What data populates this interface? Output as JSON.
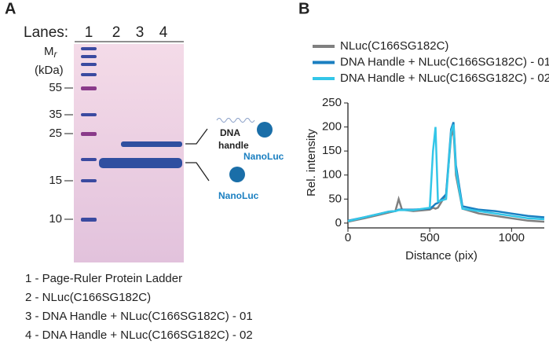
{
  "panel_a": {
    "label": "A",
    "lanes_label": "Lanes:",
    "lanes": [
      "1",
      "2",
      "3",
      "4"
    ],
    "mr": "M",
    "mr_sub": "r",
    "unit": "(kDa)",
    "markers": [
      "55",
      "35",
      "25",
      "15",
      "10"
    ],
    "dna": "DNA",
    "handle": "handle",
    "nanoluc_top": "NanoLuc",
    "nanoluc_bottom": "NanoLuc",
    "key": [
      "1 - Page-Ruler Protein Ladder",
      "2 - NLuc(C166SG182C)",
      "3 - DNA Handle + NLuc(C166SG182C) - 01",
      "4 - DNA Handle + NLuc(C166SG182C) - 02"
    ]
  },
  "chart_data": {
    "type": "line",
    "panel_label": "B",
    "xlabel": "Distance (pix)",
    "ylabel": "Rel. intensity",
    "x": [
      0,
      100,
      200,
      250,
      290,
      310,
      330,
      400,
      500,
      520,
      535,
      550,
      600,
      630,
      645,
      660,
      700,
      800,
      900,
      1000,
      1100,
      1200
    ],
    "series": [
      {
        "name": "NLuc(C166SG182C)",
        "color": "#808080",
        "values": [
          3,
          10,
          18,
          22,
          25,
          50,
          28,
          25,
          28,
          32,
          30,
          32,
          60,
          180,
          195,
          100,
          30,
          20,
          15,
          10,
          5,
          3
        ]
      },
      {
        "name": "DNA Handle + NLuc(C166SG182C) - 01",
        "color": "#1a7fc1",
        "values": [
          5,
          12,
          20,
          24,
          25,
          28,
          28,
          28,
          30,
          35,
          40,
          42,
          60,
          195,
          210,
          120,
          35,
          28,
          25,
          20,
          15,
          12
        ]
      },
      {
        "name": "DNA Handle + NLuc(C166SG182C) - 02",
        "color": "#33c6e8",
        "values": [
          4,
          12,
          20,
          24,
          25,
          27,
          27,
          27,
          32,
          150,
          200,
          45,
          50,
          190,
          205,
          110,
          30,
          25,
          20,
          15,
          10,
          8
        ]
      }
    ],
    "xlim": [
      0,
      1200
    ],
    "xticks": [
      0,
      500,
      1000
    ],
    "ylim": [
      -10,
      250
    ],
    "yticks": [
      0,
      50,
      100,
      150,
      200,
      250
    ]
  }
}
